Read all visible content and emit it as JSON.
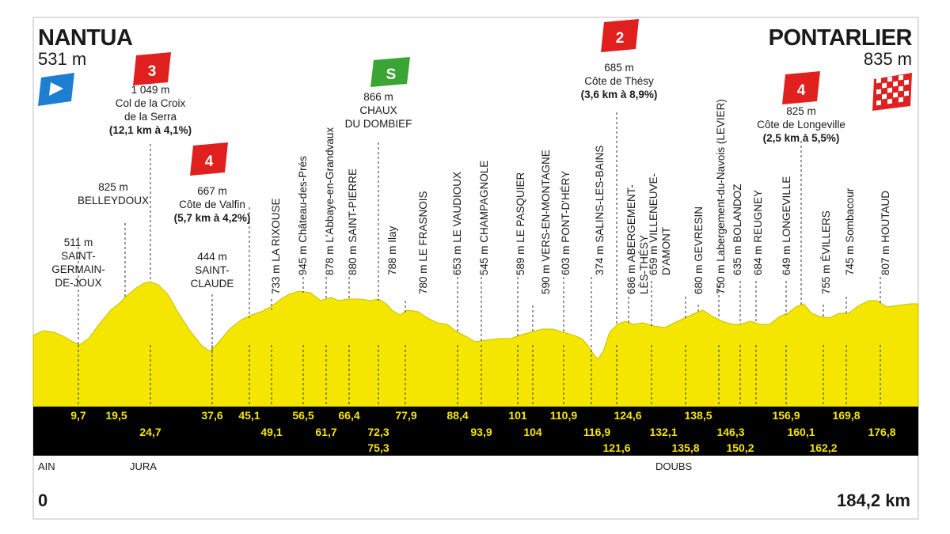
{
  "start": {
    "name": "NANTUA",
    "altitude": "531 m",
    "km": "0"
  },
  "finish": {
    "name": "PONTARLIER",
    "altitude": "835 m",
    "km": "184,2 km"
  },
  "colors": {
    "profile": "#f5e600",
    "band": "#000000",
    "climb_badge": "#e0201e",
    "sprint_badge": "#3aa534",
    "start_flag": "#1e7fd0"
  },
  "climbs": [
    {
      "category": "3",
      "lines": [
        "1 049 m",
        "Col de la Croix",
        "de la Serra"
      ],
      "stats": "(12,1 km à 4,1%)"
    },
    {
      "category": "4",
      "lines": [
        "667 m",
        "Côte de Valfin"
      ],
      "stats": "(5,7 km à 4,2%)"
    },
    {
      "category": "2",
      "lines": [
        "685 m",
        "Côte de Thésy"
      ],
      "stats": "(3,6 km à 8,9%)"
    },
    {
      "category": "4",
      "lines": [
        "825 m",
        "Côte de Longeville"
      ],
      "stats": "(2,5 km à 5,5%)"
    }
  ],
  "sprint": {
    "badge": "S",
    "lines": [
      "866 m",
      "CHAUX",
      "DU DOMBIEF"
    ]
  },
  "places_horizontal": [
    {
      "lines": [
        "511 m",
        "SAINT-",
        "GERMAIN-",
        "DE-JOUX"
      ]
    },
    {
      "lines": [
        "825 m",
        "BELLEYDOUX"
      ]
    },
    {
      "lines": [
        "444 m",
        "SAINT-",
        "CLAUDE"
      ]
    }
  ],
  "places_vertical": [
    {
      "label": "733 m LA RIXOUSE"
    },
    {
      "label": "945 m Château-des-Prés"
    },
    {
      "label": "878 m L'Abbaye-en-Grandvaux"
    },
    {
      "label": "880 m SAINT-PIERRE"
    },
    {
      "label": "788 m Ilay"
    },
    {
      "label": "780 m LE FRASNOIS"
    },
    {
      "label": "653 m LE VAUDIOUX"
    },
    {
      "label": "545 m CHAMPAGNOLE"
    },
    {
      "label": "589 m LE PASQUIER"
    },
    {
      "label": "590 m VERS-EN-MONTAGNE"
    },
    {
      "label": "603 m PONT-D'HÉRY"
    },
    {
      "label": "374 m SALINS-LES-BAINS"
    },
    {
      "label": "686 m ABERGEMENT-",
      "label2": "LÈS-THÉSY"
    },
    {
      "label": "659 m VILLENEUVE-",
      "label2": "D'AMONT"
    },
    {
      "label": "680 m GEVRESIN"
    },
    {
      "label": "750 m Labergement-du-Navois (LEVIER)"
    },
    {
      "label": "635 m BOLANDOZ"
    },
    {
      "label": "684 m REUGNEY"
    },
    {
      "label": "649 m LONGEVILLE"
    },
    {
      "label": "755 m ÉVILLERS"
    },
    {
      "label": "745 m Sombacour"
    },
    {
      "label": "807 m HOUTAUD"
    }
  ],
  "km_marks_top": [
    "9,7",
    "19,5",
    "37,6",
    "45,1",
    "56,5",
    "66,4",
    "77,9",
    "88,4",
    "101",
    "110,9",
    "124,6",
    "138,5",
    "156,9",
    "169,8"
  ],
  "km_marks_mid": [
    "24,7",
    "49,1",
    "61,7",
    "72,3",
    "93,9",
    "104",
    "116,9",
    "132,1",
    "146,3",
    "160,1",
    "176,8"
  ],
  "km_marks_low": [
    "75,3",
    "121,6",
    "135,8",
    "150,2",
    "162,2"
  ],
  "regions": [
    "AIN",
    "JURA",
    "DOUBS"
  ]
}
